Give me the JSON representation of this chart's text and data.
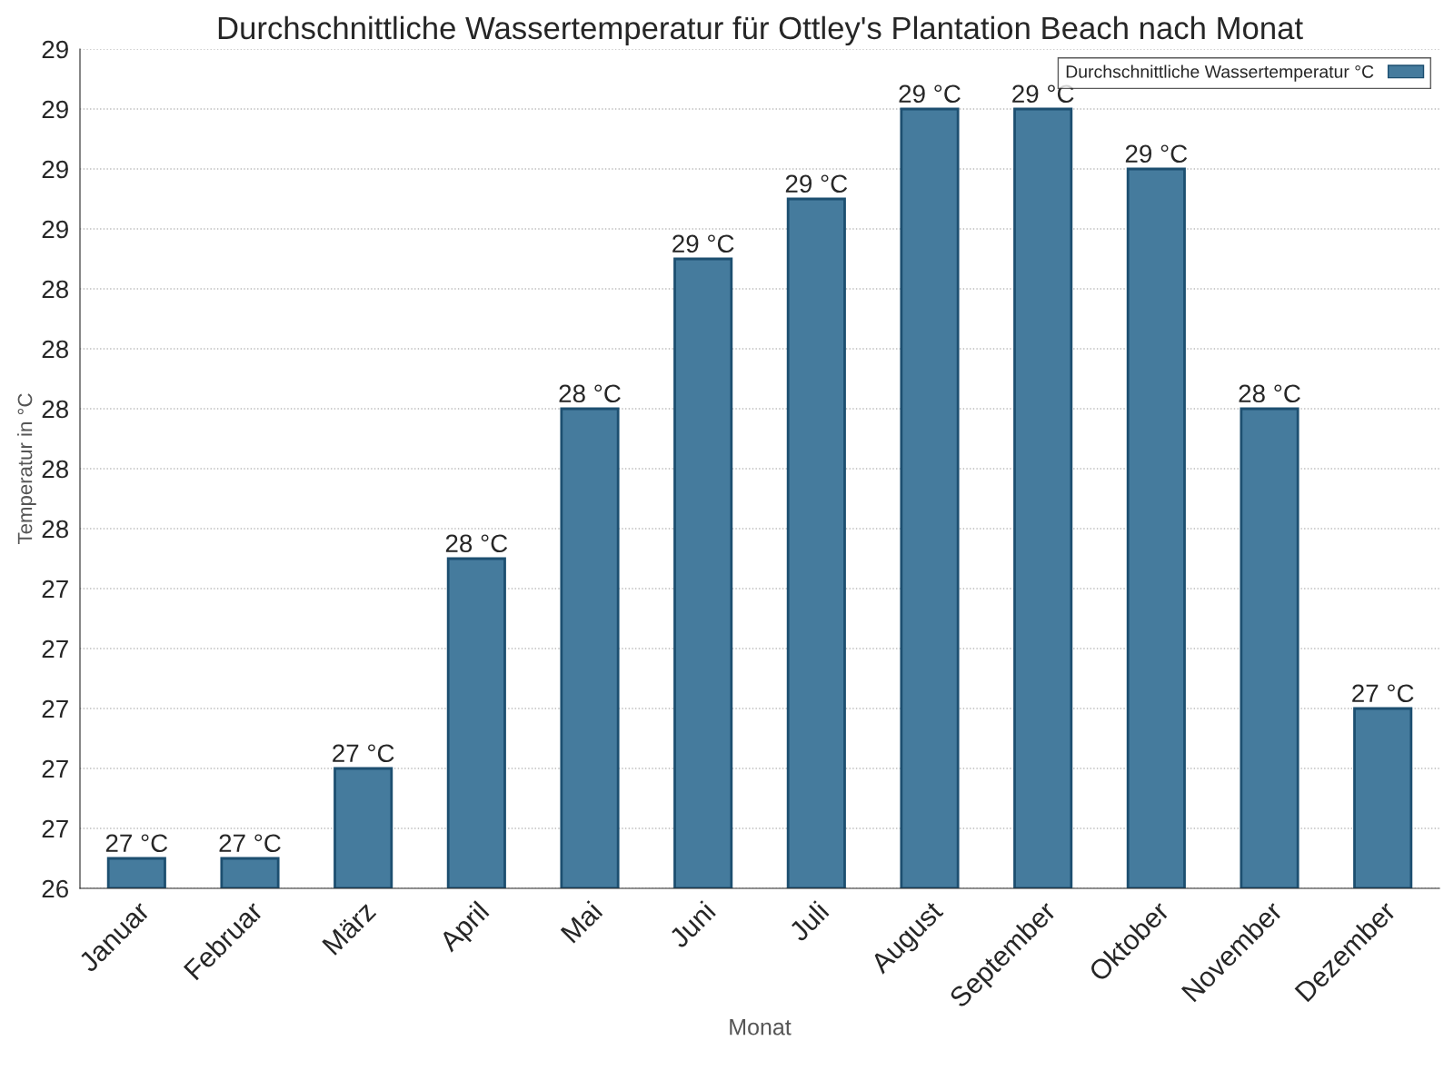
{
  "chart_data": {
    "type": "bar",
    "title": "Durchschnittliche Wassertemperatur für Ottley's Plantation Beach nach Monat",
    "xlabel": "Monat",
    "ylabel": "Temperatur in °C",
    "categories": [
      "Januar",
      "Februar",
      "März",
      "April",
      "Mai",
      "Juni",
      "Juli",
      "August",
      "September",
      "Oktober",
      "November",
      "Dezember"
    ],
    "series": [
      {
        "name": "Durchschnittliche Wassertemperatur °C",
        "color": "#457b9d",
        "values": [
          26.5,
          26.5,
          26.8,
          27.5,
          28.0,
          28.5,
          28.7,
          29.0,
          29.0,
          28.8,
          28.0,
          27.0
        ],
        "value_labels": [
          "27 °C",
          "27 °C",
          "27 °C",
          "28 °C",
          "28 °C",
          "29 °C",
          "29 °C",
          "29 °C",
          "29 °C",
          "29 °C",
          "28 °C",
          "27 °C"
        ]
      }
    ],
    "ylim": [
      26.4,
      29.2
    ],
    "yticks": [
      {
        "value": 26.4,
        "label": "26"
      },
      {
        "value": 26.6,
        "label": "27"
      },
      {
        "value": 26.8,
        "label": "27"
      },
      {
        "value": 27.0,
        "label": "27"
      },
      {
        "value": 27.2,
        "label": "27"
      },
      {
        "value": 27.4,
        "label": "27"
      },
      {
        "value": 27.6,
        "label": "28"
      },
      {
        "value": 27.8,
        "label": "28"
      },
      {
        "value": 28.0,
        "label": "28"
      },
      {
        "value": 28.2,
        "label": "28"
      },
      {
        "value": 28.4,
        "label": "28"
      },
      {
        "value": 28.6,
        "label": "29"
      },
      {
        "value": 28.8,
        "label": "29"
      },
      {
        "value": 29.0,
        "label": "29"
      },
      {
        "value": 29.2,
        "label": "29"
      }
    ],
    "grid": "y",
    "legend": "top right"
  }
}
